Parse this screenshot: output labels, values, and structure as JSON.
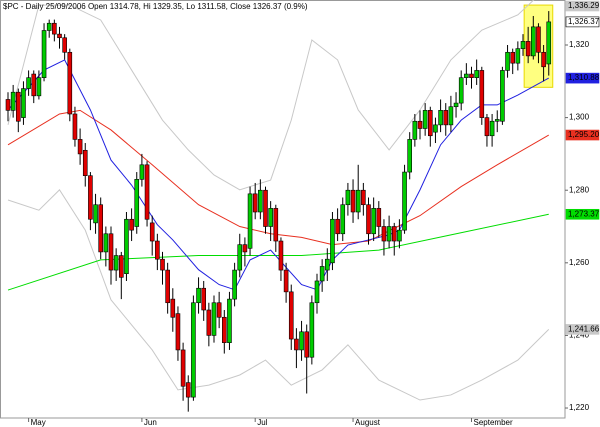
{
  "chart_data": {
    "type": "candlestick",
    "title": "$PC - Daily 25/09/2006 Open 1314.78, Hi 1329.35, Lo 1311.58, Close 1326.37 (0.9%)",
    "categories": [
      null,
      null,
      null,
      null,
      "May",
      null,
      null,
      null,
      null,
      null,
      null,
      null,
      null,
      null,
      null,
      null,
      null,
      null,
      null,
      null,
      null,
      null,
      null,
      null,
      null,
      null,
      "Jun",
      null,
      null,
      null,
      null,
      null,
      null,
      null,
      null,
      null,
      null,
      null,
      null,
      null,
      null,
      null,
      null,
      null,
      null,
      null,
      null,
      null,
      "Jul",
      null,
      null,
      null,
      null,
      null,
      null,
      null,
      null,
      null,
      null,
      null,
      null,
      null,
      null,
      null,
      null,
      null,
      null,
      "August",
      null,
      null,
      null,
      null,
      null,
      null,
      null,
      null,
      null,
      null,
      null,
      null,
      null,
      null,
      null,
      null,
      null,
      null,
      null,
      null,
      null,
      null,
      "September",
      null,
      null,
      null,
      null,
      null,
      null,
      null,
      null,
      null,
      null,
      null,
      null,
      null,
      null,
      null
    ],
    "open": [
      1305,
      1302,
      1307,
      1300,
      1308,
      1312,
      1306,
      1311,
      1324,
      1326,
      1323,
      1322,
      1318,
      1301,
      1294,
      1291,
      1284,
      1271,
      1276,
      1263,
      1268,
      1258,
      1262,
      1257,
      1272,
      1270,
      1283,
      1287,
      1271,
      1266,
      1261,
      1258,
      1250,
      1246,
      1236,
      1227,
      1223,
      1249,
      1253,
      1247,
      1240,
      1249,
      1245,
      1238,
      1250,
      1258,
      1265,
      1264,
      1279,
      1274,
      1280,
      1270,
      1275,
      1266,
      1258,
      1252,
      1239,
      1236,
      1241,
      1234,
      1249,
      1255,
      1258,
      1260,
      1272,
      1268,
      1276,
      1280,
      1274,
      1280,
      1276,
      1268,
      1275,
      1270,
      1266,
      1270,
      1266,
      1269,
      1285,
      1294,
      1299,
      1297,
      1302,
      1296,
      1298,
      1302,
      1298,
      1303,
      1304,
      1311,
      1312,
      1311,
      1313,
      1300,
      1295,
      1299,
      1299,
      1313,
      1318,
      1315,
      1319,
      1321,
      1317,
      1325,
      1318,
      1314.78
    ],
    "high": [
      1307,
      1309,
      1308,
      1310,
      1313,
      1313,
      1313,
      1326,
      1327,
      1327,
      1325,
      1323,
      1319,
      1303,
      1297,
      1293,
      1285,
      1279,
      1278,
      1270,
      1270,
      1264,
      1263,
      1274,
      1275,
      1285,
      1290,
      1288,
      1273,
      1268,
      1263,
      1260,
      1253,
      1248,
      1238,
      1229,
      1251,
      1256,
      1255,
      1249,
      1251,
      1252,
      1247,
      1252,
      1260,
      1268,
      1267,
      1281,
      1282,
      1283,
      1281,
      1277,
      1276,
      1267,
      1260,
      1254,
      1242,
      1244,
      1243,
      1251,
      1257,
      1261,
      1264,
      1274,
      1275,
      1278,
      1282,
      1283,
      1287,
      1282,
      1278,
      1278,
      1277,
      1272,
      1273,
      1271,
      1272,
      1287,
      1296,
      1301,
      1302,
      1304,
      1303,
      1300,
      1305,
      1304,
      1306,
      1307,
      1313,
      1315,
      1314,
      1316,
      1314,
      1301,
      1301,
      1302,
      1314,
      1320,
      1319,
      1321,
      1323,
      1325,
      1328,
      1326,
      1320,
      1329.35
    ],
    "low": [
      1299,
      1300,
      1296,
      1298,
      1306,
      1304,
      1305,
      1310,
      1322,
      1321,
      1319,
      1316,
      1299,
      1292,
      1287,
      1281,
      1269,
      1268,
      1261,
      1259,
      1254,
      1255,
      1250,
      1255,
      1266,
      1268,
      1281,
      1270,
      1262,
      1258,
      1254,
      1246,
      1241,
      1233,
      1222,
      1219,
      1222,
      1246,
      1244,
      1237,
      1238,
      1242,
      1235,
      1236,
      1248,
      1256,
      1259,
      1262,
      1272,
      1272,
      1268,
      1266,
      1263,
      1255,
      1249,
      1236,
      1231,
      1233,
      1224,
      1232,
      1246,
      1252,
      1255,
      1258,
      1266,
      1266,
      1273,
      1271,
      1272,
      1273,
      1265,
      1266,
      1267,
      1262,
      1264,
      1262,
      1264,
      1268,
      1283,
      1292,
      1294,
      1295,
      1292,
      1293,
      1296,
      1295,
      1296,
      1300,
      1302,
      1309,
      1308,
      1309,
      1298,
      1292,
      1292,
      1296,
      1298,
      1311,
      1312,
      1313,
      1317,
      1315,
      1316,
      1315,
      1310,
      1311.58
    ],
    "close": [
      1302,
      1307,
      1299,
      1308,
      1311,
      1306,
      1311,
      1324,
      1326,
      1323,
      1322,
      1318,
      1301,
      1294,
      1290,
      1284,
      1272,
      1276,
      1263,
      1268,
      1258,
      1262,
      1256,
      1272,
      1269,
      1283,
      1287,
      1272,
      1266,
      1261,
      1258,
      1249,
      1245,
      1236,
      1226,
      1223,
      1249,
      1253,
      1247,
      1240,
      1249,
      1245,
      1238,
      1250,
      1258,
      1265,
      1263,
      1279,
      1274,
      1280,
      1270,
      1275,
      1266,
      1258,
      1252,
      1239,
      1236,
      1241,
      1234,
      1249,
      1255,
      1259,
      1261,
      1272,
      1268,
      1276,
      1280,
      1274,
      1280,
      1276,
      1268,
      1275,
      1270,
      1266,
      1270,
      1266,
      1269,
      1285,
      1294,
      1299,
      1297,
      1302,
      1295,
      1298,
      1302,
      1298,
      1303,
      1304,
      1311,
      1312,
      1311,
      1313,
      1300,
      1295,
      1299,
      1299.5,
      1313,
      1318,
      1315,
      1319,
      1321,
      1317,
      1325,
      1318,
      1314,
      1326.37
    ],
    "close_label": "1,326.37",
    "up_color": "#00cc00",
    "down_color": "#e00000",
    "highlight": {
      "start": 101,
      "end": 105,
      "color": "#ffff80"
    },
    "overlays": [
      {
        "color": "#c8c8c8",
        "x": [
          0,
          6,
          12,
          18,
          24,
          30,
          35,
          40,
          45,
          51,
          55,
          59,
          64,
          68,
          74,
          80,
          86,
          92,
          99,
          105
        ],
        "values": [
          1298,
          1331,
          1331,
          1326.9,
          1313.1,
          1299.3,
          1291.1,
          1284.2,
          1280.1,
          1282.8,
          1299.3,
          1321.4,
          1315.9,
          1302.1,
          1291.1,
          1302.1,
          1315.9,
          1324.1,
          1328.3,
          1336.29
        ],
        "end_label": "1,336.29"
      },
      {
        "color": "#c8c8c8",
        "x": [
          0,
          6,
          10,
          15,
          20,
          28,
          33,
          39,
          45,
          50,
          55,
          61,
          66,
          72,
          80,
          86,
          92,
          99,
          105
        ],
        "values": [
          1277.3,
          1274.5,
          1280.1,
          1269,
          1249.8,
          1236,
          1225,
          1226.3,
          1229.1,
          1233.2,
          1226.3,
          1230.5,
          1237.4,
          1227.7,
          1222.2,
          1223.6,
          1227.7,
          1233.2,
          1241.66
        ],
        "end_label": "1,241.66"
      },
      {
        "color": "#00dd00",
        "x": [
          0,
          18,
          37,
          57,
          72,
          86,
          105
        ],
        "values": [
          1252.5,
          1260.8,
          1262,
          1262,
          1263.5,
          1267.7,
          1273.37
        ],
        "end_label": "1,273.37"
      },
      {
        "color": "#e83020",
        "x": [
          0,
          10,
          14,
          20,
          28,
          37,
          45,
          51,
          57,
          63,
          70,
          80,
          88,
          95,
          105
        ],
        "values": [
          1292.5,
          1301,
          1302,
          1296.6,
          1287,
          1276,
          1270,
          1268,
          1267,
          1265,
          1266,
          1273,
          1281,
          1287,
          1295.2
        ],
        "end_label": "1,295.20"
      },
      {
        "color": "#2020e0",
        "x": [
          0,
          7,
          11,
          16,
          20,
          24,
          29,
          32,
          37,
          41,
          44,
          47,
          51,
          57,
          60,
          63,
          66,
          70,
          74,
          76,
          80,
          84,
          88,
          92,
          95,
          99,
          105
        ],
        "values": [
          1302.1,
          1313.1,
          1315.9,
          1302.1,
          1288.3,
          1281.4,
          1270.5,
          1266.3,
          1258.1,
          1254,
          1252.6,
          1260.8,
          1263.5,
          1254,
          1252.6,
          1260.8,
          1264.9,
          1266.3,
          1267.7,
          1269,
          1280.1,
          1292.5,
          1299.3,
          1303.5,
          1303.5,
          1306.2,
          1310.88
        ],
        "end_label": "1,310.88"
      }
    ],
    "ylim": [
      1217.25,
      1332.4
    ],
    "yticks": [
      {
        "value": 1220,
        "label": "1,220"
      },
      {
        "value": 1240,
        "label": "1,240"
      },
      {
        "value": 1260,
        "label": "1,260"
      },
      {
        "value": 1280,
        "label": "1,280"
      },
      {
        "value": 1300,
        "label": "1,300"
      },
      {
        "value": 1320,
        "label": "1,320"
      }
    ]
  }
}
